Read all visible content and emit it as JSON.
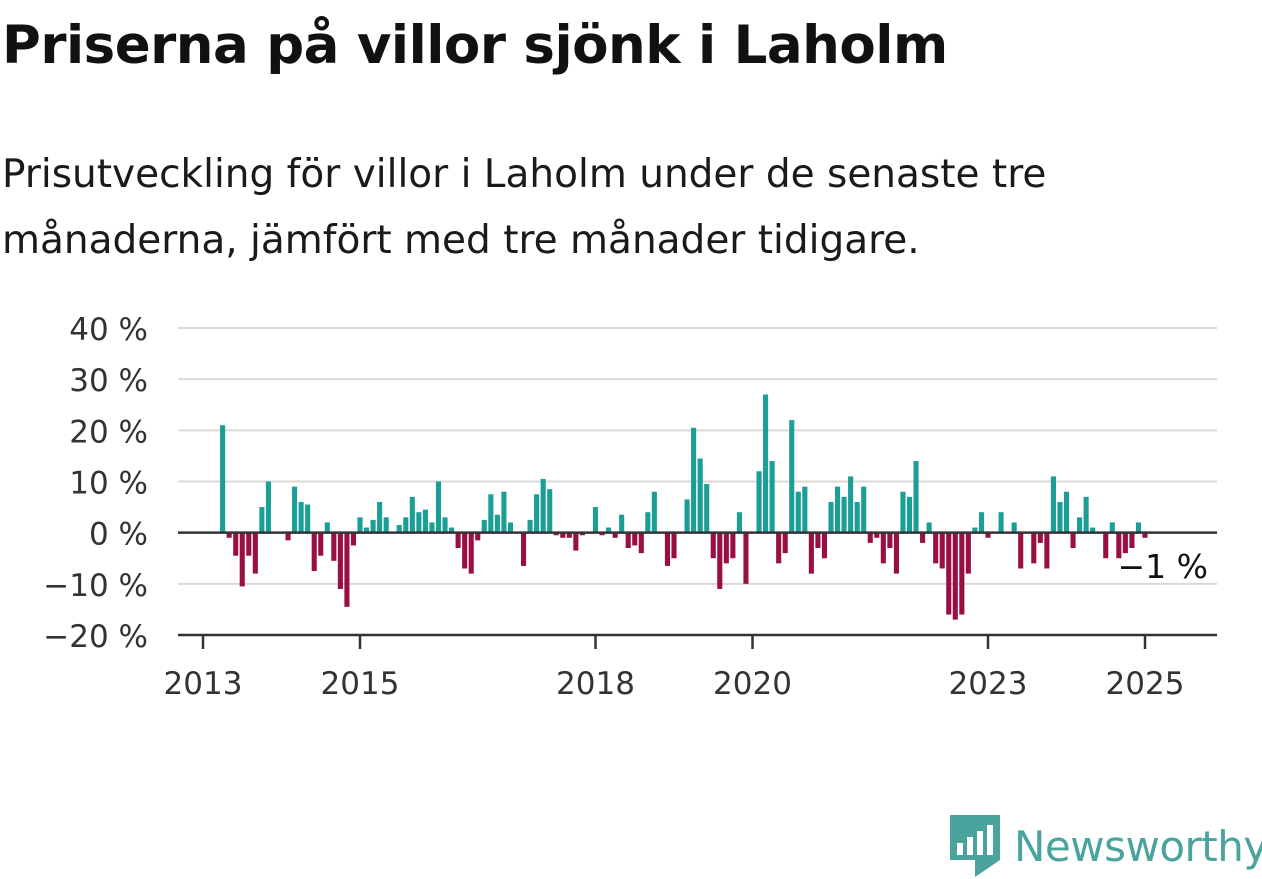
{
  "title": "Priserna på villor sjönk i Laholm",
  "subtitle": "Prisutveckling för villor i Laholm under de senaste tre månaderna, jämfört med tre månader tidigare.",
  "brand": {
    "name": "Newsworthy",
    "color": "#4aa39c",
    "icon": "newsworthy-logo-icon"
  },
  "colors": {
    "positive": "#1a9e96",
    "negative": "#9a0f43",
    "grid": "#d9d9d9",
    "axis": "#333333",
    "tick_text": "#333333"
  },
  "chart_data": {
    "type": "bar",
    "xlabel": "",
    "ylabel": "",
    "ylim": [
      -20,
      40
    ],
    "yticks": [
      40,
      30,
      20,
      10,
      0,
      -10,
      -20
    ],
    "ytick_labels": [
      "40 %",
      "30 %",
      "20 %",
      "10 %",
      "0 %",
      "−10 %",
      "−20 %"
    ],
    "xticks": [
      "2013",
      "2015",
      "2018",
      "2020",
      "2023",
      "2025"
    ],
    "grid": true,
    "series_start": "2013-04",
    "frequency": "monthly",
    "values": [
      21,
      -1,
      -4.5,
      -10.5,
      -4.5,
      -8,
      5,
      10,
      0,
      0,
      -1.5,
      9,
      6,
      5.5,
      -7.5,
      -4.5,
      2,
      -5.5,
      -11,
      -14.5,
      -2.5,
      3,
      1,
      2.5,
      6,
      3,
      0,
      1.5,
      3,
      7,
      4,
      4.5,
      2,
      10,
      3,
      1,
      -3,
      -7,
      -8,
      -1.5,
      2.5,
      7.5,
      3.5,
      8,
      2,
      0,
      -6.5,
      2.5,
      7.5,
      10.5,
      8.5,
      -0.5,
      -1,
      -1,
      -3.5,
      -0.5,
      0,
      5,
      -0.5,
      1,
      -1,
      3.5,
      -3,
      -2.5,
      -4,
      4,
      8,
      0,
      -6.5,
      -5,
      0,
      6.5,
      20.5,
      14.5,
      9.5,
      -5,
      -11,
      -6,
      -5,
      4,
      -10,
      0,
      12,
      27,
      14,
      -6,
      -4,
      22,
      8,
      9,
      -8,
      -3,
      -5,
      6,
      9,
      7,
      11,
      6,
      9,
      -2,
      -1,
      -6,
      -3,
      -8,
      8,
      7,
      14,
      -2,
      2,
      -6,
      -7,
      -16,
      -17,
      -16,
      -8,
      1,
      4,
      -1,
      0,
      4,
      0,
      2,
      -7,
      0,
      -6,
      -2,
      -7,
      11,
      6,
      8,
      -3,
      3,
      7,
      1,
      0,
      -5,
      2,
      -5,
      -4,
      -3,
      2,
      -1
    ],
    "annotation": {
      "label": "−1 %",
      "value": -1,
      "period": "2025-08"
    }
  }
}
